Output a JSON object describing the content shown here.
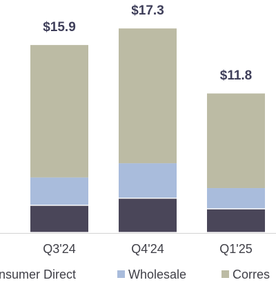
{
  "chart_data": {
    "type": "bar",
    "stacked": true,
    "categories": [
      "Q3'24",
      "Q4'24",
      "Q1'25"
    ],
    "totals": [
      "$15.9",
      "$17.3",
      "$11.8"
    ],
    "series": [
      {
        "name": "Consumer Direct",
        "color": "#4a4659",
        "values": [
          2.3,
          2.9,
          2.0
        ]
      },
      {
        "name": "Wholesale",
        "color": "#a9bcdc",
        "values": [
          2.4,
          3.0,
          1.8
        ]
      },
      {
        "name": "Corres",
        "color": "#bcbba4",
        "values": [
          11.2,
          11.4,
          8.0
        ]
      }
    ],
    "legend_position": "bottom",
    "grid": false
  }
}
